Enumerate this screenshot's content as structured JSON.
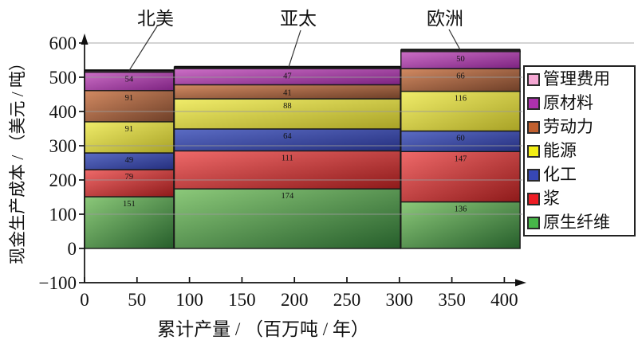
{
  "chart_data": {
    "type": "bar",
    "variant": "variable-width-stacked-bar",
    "title": "",
    "xlabel": "累计产量 / （百万吨 / 年）",
    "ylabel": "现金生产成本 / （美元 / 吨）",
    "xlim": [
      0,
      420
    ],
    "ylim": [
      -100,
      600
    ],
    "x_ticks": [
      0,
      50,
      100,
      150,
      200,
      250,
      300,
      350,
      400
    ],
    "y_ticks": [
      600,
      500,
      400,
      300,
      200,
      100,
      0,
      -100
    ],
    "grid": "horizontal, every 100",
    "legend_position": "right",
    "components": [
      {
        "label": "原生纤维",
        "color": "#47b649",
        "gradient": [
          "#8cc97a",
          "#265e2b"
        ]
      },
      {
        "label": "浆",
        "color": "#ed1c24",
        "gradient": [
          "#ef6a6a",
          "#8e1a1a"
        ]
      },
      {
        "label": "化工",
        "color": "#3747b5",
        "gradient": [
          "#5b6cc4",
          "#252f7e"
        ]
      },
      {
        "label": "能源",
        "color": "#f2ee15",
        "gradient": [
          "#f0ec6a",
          "#a8a226"
        ]
      },
      {
        "label": "劳动力",
        "color": "#c1602f",
        "gradient": [
          "#d28a62",
          "#6e3f28"
        ]
      },
      {
        "label": "原材料",
        "color": "#ad31ad",
        "gradient": [
          "#cc6fc6",
          "#7c2280"
        ]
      },
      {
        "label": "管理费用",
        "color": "#f4a7d3",
        "gradient": [
          "#eeb1e0",
          "#bf7cb4"
        ]
      }
    ],
    "regions": [
      {
        "name": "北美",
        "x_start": 0,
        "x_end": 85,
        "values": [
          151,
          79,
          49,
          91,
          91,
          54,
          5
        ],
        "value_labels": [
          "151",
          "79",
          "49",
          "91",
          "91",
          "54",
          ""
        ]
      },
      {
        "name": "亚太",
        "x_start": 85.5,
        "x_end": 301,
        "values": [
          174,
          111,
          64,
          88,
          41,
          47,
          5
        ],
        "value_labels": [
          "174",
          "111",
          "64",
          "88",
          "41",
          "47",
          ""
        ]
      },
      {
        "name": "欧洲",
        "x_start": 301.5,
        "x_end": 415,
        "values": [
          136,
          147,
          60,
          116,
          66,
          50,
          5
        ],
        "value_labels": [
          "136",
          "147",
          "60",
          "116",
          "66",
          "50",
          ""
        ]
      }
    ],
    "legend_items": [
      {
        "label": "管理费用",
        "color": "#f4a7d3"
      },
      {
        "label": "原材料",
        "color": "#ad31ad"
      },
      {
        "label": "劳动力",
        "color": "#c1602f"
      },
      {
        "label": "能源",
        "color": "#f2ee15"
      },
      {
        "label": "化工",
        "color": "#3747b5"
      },
      {
        "label": "浆",
        "color": "#ed1c24"
      },
      {
        "label": "原生纤维",
        "color": "#47b649"
      }
    ]
  }
}
